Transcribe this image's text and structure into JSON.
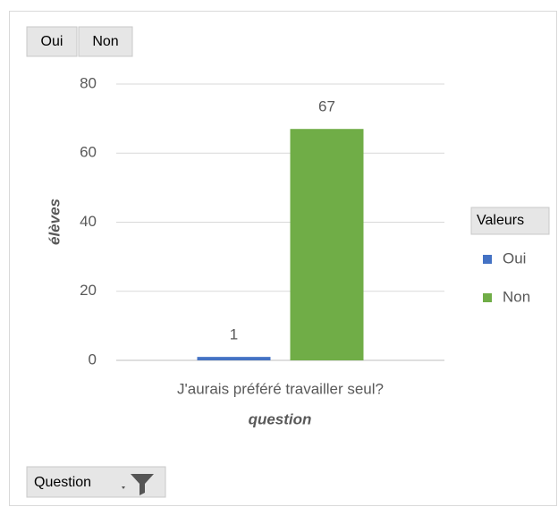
{
  "chart_data": {
    "type": "bar",
    "categories": [
      "J'aurais préféré travailler seul?"
    ],
    "series": [
      {
        "name": "Oui",
        "color": "#4472c4",
        "values": [
          1
        ]
      },
      {
        "name": "Non",
        "color": "#70ad47",
        "values": [
          67
        ]
      }
    ],
    "ylim": [
      0,
      80
    ],
    "yticks": [
      0,
      20,
      40,
      60,
      80
    ],
    "grid": true,
    "y_label": "élèves",
    "x_label": "question",
    "legend_title": "Valeurs",
    "legend": "right",
    "filter_button": "Question"
  }
}
